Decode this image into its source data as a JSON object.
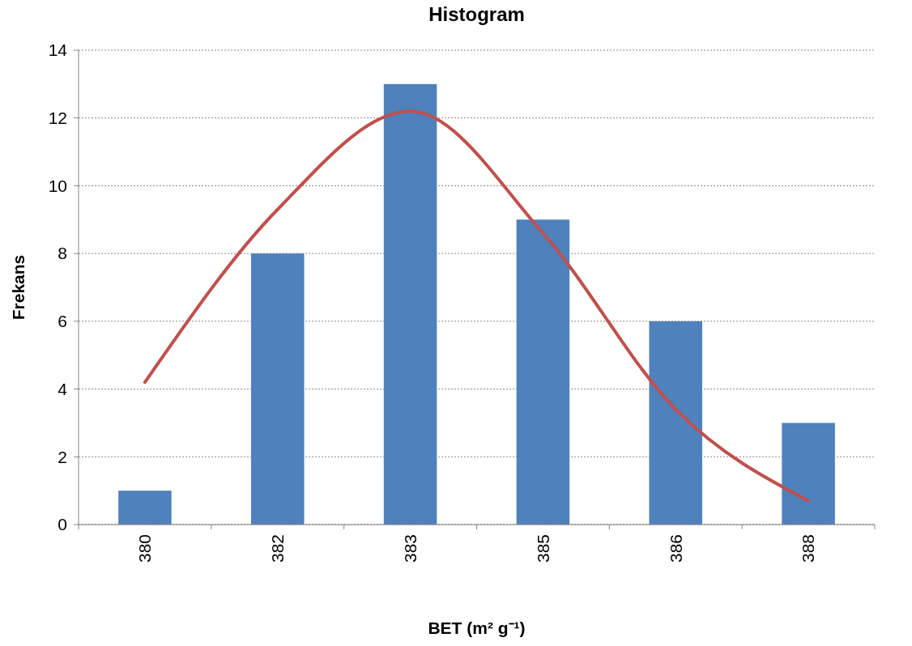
{
  "chart_data": {
    "type": "bar",
    "title": "Histogram",
    "xlabel": "BET (m² g⁻¹)",
    "ylabel": "Frekans",
    "categories": [
      "380",
      "382",
      "383",
      "385",
      "386",
      "388"
    ],
    "series": [
      {
        "color": "#4f81bd",
        "values": [
          1,
          8,
          13,
          9,
          6,
          3
        ]
      },
      {
        "type": "line",
        "color": "#c0504d",
        "values": [
          4.2,
          9.3,
          12.2,
          8.6,
          3.4,
          0.7
        ]
      }
    ],
    "ylim": [
      0,
      14
    ],
    "yticks": [
      0,
      2,
      4,
      6,
      8,
      10,
      12,
      14
    ],
    "grid": "y"
  }
}
